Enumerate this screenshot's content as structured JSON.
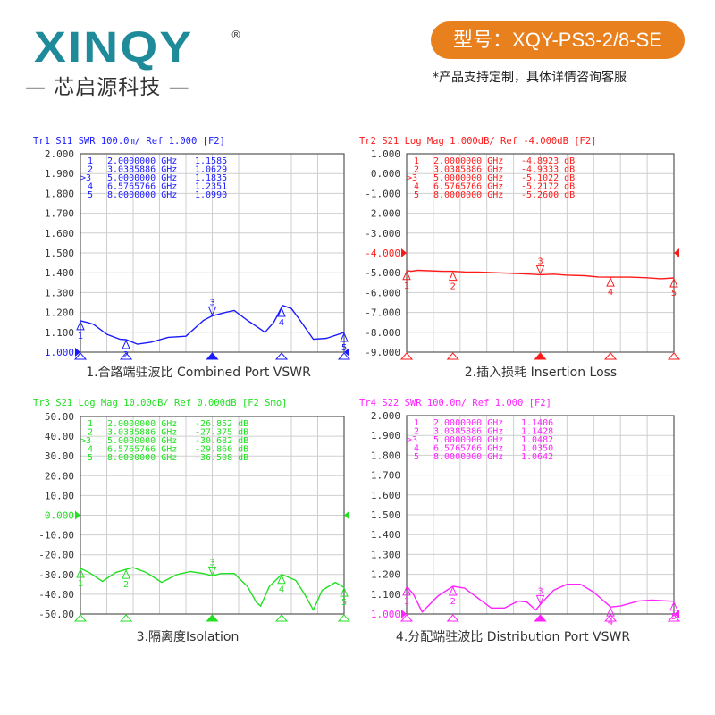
{
  "header": {
    "logo_text": "XINQY",
    "logo_registered": "®",
    "company": "— 芯启源科技 —",
    "model": "型号：XQY-PS3-2/8-SE",
    "note": "*产品支持定制，具体详情咨询客服"
  },
  "chart_data": [
    {
      "type": "line",
      "title": "Tr1 S11 SWR 100.0m/ Ref 1.000 [F2]",
      "caption": "1.合路端驻波比 Combined Port VSWR",
      "color": "#1a1aff",
      "xlim": [
        2,
        8
      ],
      "x_unit": "GHz",
      "ylim": [
        1.0,
        2.0
      ],
      "yticks": [
        "2.000",
        "1.900",
        "1.800",
        "1.700",
        "1.600",
        "1.500",
        "1.400",
        "1.300",
        "1.200",
        "1.100",
        "1.000"
      ],
      "ref_value": 1.0,
      "grid": true,
      "markers": [
        {
          "id": "1",
          "label": "1",
          "freq": "2.0000000 GHz",
          "f": 2.0,
          "value": "1.1585"
        },
        {
          "id": "2",
          "label": "2",
          "freq": "3.0385886 GHz",
          "f": 3.0385886,
          "value": "1.0629"
        },
        {
          "id": "3",
          "label": ">3",
          "freq": "5.0000000 GHz",
          "f": 5.0,
          "value": "1.1835"
        },
        {
          "id": "4",
          "label": "4",
          "freq": "6.5765766 GHz",
          "f": 6.5765766,
          "value": "1.2351"
        },
        {
          "id": "5",
          "label": "5",
          "freq": "8.0000000 GHz",
          "f": 8.0,
          "value": "1.0990"
        }
      ],
      "series": [
        {
          "x": [
            2,
            2.15,
            2.3,
            2.6,
            2.9,
            3.04,
            3.3,
            3.6,
            4.0,
            4.4,
            4.8,
            5.0,
            5.3,
            5.5,
            5.8,
            6.0,
            6.2,
            6.4,
            6.6,
            6.8,
            7.0,
            7.3,
            7.6,
            8.0
          ],
          "y": [
            1.158,
            1.15,
            1.14,
            1.09,
            1.065,
            1.063,
            1.04,
            1.05,
            1.075,
            1.08,
            1.16,
            1.183,
            1.2,
            1.21,
            1.16,
            1.13,
            1.1,
            1.15,
            1.235,
            1.22,
            1.16,
            1.065,
            1.07,
            1.099
          ]
        }
      ]
    },
    {
      "type": "line",
      "title": "Tr2 S21 Log Mag 1.000dB/ Ref -4.000dB [F2]",
      "caption": "2.插入损耗 Insertion Loss",
      "color": "#ff1a1a",
      "xlim": [
        2,
        8
      ],
      "x_unit": "GHz",
      "ylim": [
        -9.0,
        1.0
      ],
      "yticks": [
        "1.000",
        "0.000",
        "-1.000",
        "-2.000",
        "-3.000",
        "-4.000",
        "-5.000",
        "-6.000",
        "-7.000",
        "-8.000",
        "-9.000"
      ],
      "ref_value": -4.0,
      "grid": true,
      "markers": [
        {
          "id": "1",
          "label": "1",
          "freq": "2.0000000 GHz",
          "f": 2.0,
          "value": "-4.8923 dB"
        },
        {
          "id": "2",
          "label": "2",
          "freq": "3.0385886 GHz",
          "f": 3.0385886,
          "value": "-4.9333 dB"
        },
        {
          "id": "3",
          "label": ">3",
          "freq": "5.0000000 GHz",
          "f": 5.0,
          "value": "-5.1022 dB"
        },
        {
          "id": "4",
          "label": "4",
          "freq": "6.5765766 GHz",
          "f": 6.5765766,
          "value": "-5.2172 dB"
        },
        {
          "id": "5",
          "label": "5",
          "freq": "8.0000000 GHz",
          "f": 8.0,
          "value": "-5.2600 dB"
        }
      ],
      "series": [
        {
          "x": [
            2,
            2.1,
            2.25,
            2.5,
            2.8,
            3.04,
            3.3,
            3.6,
            4.0,
            4.4,
            4.8,
            5.0,
            5.3,
            5.6,
            6.0,
            6.3,
            6.58,
            7.0,
            7.4,
            7.7,
            8.0
          ],
          "y": [
            -4.89,
            -4.93,
            -4.88,
            -4.9,
            -4.93,
            -4.93,
            -4.96,
            -4.97,
            -5.0,
            -5.03,
            -5.07,
            -5.1,
            -5.07,
            -5.12,
            -5.15,
            -5.21,
            -5.22,
            -5.22,
            -5.25,
            -5.3,
            -5.26
          ]
        }
      ]
    },
    {
      "type": "line",
      "title": "Tr3 S21 Log Mag 10.00dB/ Ref 0.000dB [F2 Smo]",
      "caption": "3.隔离度Isolation",
      "color": "#22e022",
      "xlim": [
        2,
        8
      ],
      "x_unit": "GHz",
      "ylim": [
        -50,
        50
      ],
      "yticks": [
        "50.00",
        "40.00",
        "30.00",
        "20.00",
        "10.00",
        "0.000",
        "-10.00",
        "-20.00",
        "-30.00",
        "-40.00",
        "-50.00"
      ],
      "ref_value": 0,
      "grid": true,
      "markers": [
        {
          "id": "1",
          "label": "1",
          "freq": "2.0000000 GHz",
          "f": 2.0,
          "value": "-26.852 dB"
        },
        {
          "id": "2",
          "label": "2",
          "freq": "3.0385886 GHz",
          "f": 3.0385886,
          "value": "-27.375 dB"
        },
        {
          "id": "3",
          "label": ">3",
          "freq": "5.0000000 GHz",
          "f": 5.0,
          "value": "-30.682 dB"
        },
        {
          "id": "4",
          "label": "4",
          "freq": "6.5765766 GHz",
          "f": 6.5765766,
          "value": "-29.860 dB"
        },
        {
          "id": "5",
          "label": "5",
          "freq": "8.0000000 GHz",
          "f": 8.0,
          "value": "-36.508 dB"
        }
      ],
      "series": [
        {
          "x": [
            2,
            2.2,
            2.5,
            2.8,
            3.04,
            3.2,
            3.5,
            3.85,
            4.2,
            4.5,
            4.8,
            5.0,
            5.2,
            5.5,
            5.8,
            6.0,
            6.1,
            6.3,
            6.58,
            6.9,
            7.1,
            7.3,
            7.5,
            7.8,
            8.0
          ],
          "y": [
            -26.9,
            -29,
            -33.5,
            -29,
            -27.4,
            -26.5,
            -29,
            -34,
            -30,
            -28.5,
            -29.5,
            -30.7,
            -29.5,
            -29.5,
            -36,
            -44,
            -46,
            -36,
            -29.9,
            -33,
            -40,
            -48,
            -38,
            -34,
            -36.5
          ]
        }
      ]
    },
    {
      "type": "line",
      "title": "Tr4 S22 SWR 100.0m/ Ref 1.000 [F2]",
      "caption": "4.分配端驻波比 Distribution  Port VSWR",
      "color": "#ff22ff",
      "xlim": [
        2,
        8
      ],
      "x_unit": "GHz",
      "ylim": [
        1.0,
        2.0
      ],
      "yticks": [
        "2.000",
        "1.900",
        "1.800",
        "1.700",
        "1.600",
        "1.500",
        "1.400",
        "1.300",
        "1.200",
        "1.100",
        "1.000"
      ],
      "ref_value": 1.0,
      "grid": true,
      "markers": [
        {
          "id": "1",
          "label": "1",
          "freq": "2.0000000 GHz",
          "f": 2.0,
          "value": "1.1406"
        },
        {
          "id": "2",
          "label": "2",
          "freq": "3.0385886 GHz",
          "f": 3.0385886,
          "value": "1.1428"
        },
        {
          "id": "3",
          "label": ">3",
          "freq": "5.0000000 GHz",
          "f": 5.0,
          "value": "1.0482"
        },
        {
          "id": "4",
          "label": "4",
          "freq": "6.5765766 GHz",
          "f": 6.5765766,
          "value": "1.0350"
        },
        {
          "id": "5",
          "label": "5",
          "freq": "8.0000000 GHz",
          "f": 8.0,
          "value": "1.0642"
        }
      ],
      "series": [
        {
          "x": [
            2,
            2.15,
            2.35,
            2.7,
            3.04,
            3.3,
            3.6,
            3.9,
            4.2,
            4.5,
            4.7,
            4.9,
            5.0,
            5.3,
            5.6,
            5.9,
            6.2,
            6.58,
            6.8,
            7.2,
            7.5,
            8.0
          ],
          "y": [
            1.14,
            1.1,
            1.01,
            1.09,
            1.14,
            1.13,
            1.08,
            1.03,
            1.03,
            1.065,
            1.06,
            1.02,
            1.048,
            1.12,
            1.15,
            1.15,
            1.11,
            1.035,
            1.04,
            1.065,
            1.07,
            1.064
          ]
        }
      ]
    }
  ]
}
